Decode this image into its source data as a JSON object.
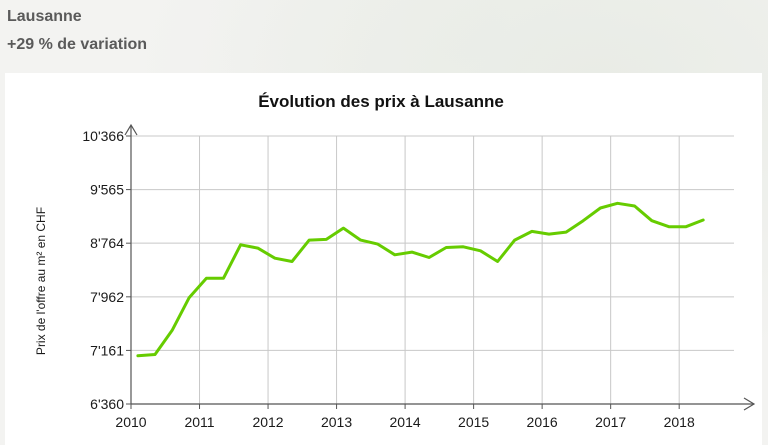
{
  "header": {
    "city": "Lausanne",
    "variation": "+29 % de variation"
  },
  "colors": {
    "line": "#66cc00",
    "grid": "#c8c8c8",
    "axis": "#555555"
  },
  "chart_data": {
    "type": "line",
    "title": "Évolution des prix à Lausanne",
    "ylabel": "Prix de l'offre au m² en CHF",
    "xlabel": "",
    "ylim": [
      6360,
      10366
    ],
    "xlim": [
      2010,
      2018.8
    ],
    "x_ticks": [
      "2010",
      "2011",
      "2012",
      "2013",
      "2014",
      "2015",
      "2016",
      "2017",
      "2018"
    ],
    "y_ticks": [
      "10'366",
      "9'565",
      "8'764",
      "7'962",
      "7'161",
      "6'360"
    ],
    "y_tick_values": [
      10366,
      9565,
      8764,
      7962,
      7161,
      6360
    ],
    "grid": true,
    "series": [
      {
        "x": [
          2010.1,
          2010.35,
          2010.6,
          2010.85,
          2011.1,
          2011.35,
          2011.6,
          2011.85,
          2012.1,
          2012.35,
          2012.6,
          2012.85,
          2013.1,
          2013.35,
          2013.6,
          2013.85,
          2014.1,
          2014.35,
          2014.6,
          2014.85,
          2015.1,
          2015.35,
          2015.6,
          2015.85,
          2016.1,
          2016.35,
          2016.6,
          2016.85,
          2017.1,
          2017.35,
          2017.6,
          2017.85,
          2018.1,
          2018.35
        ],
        "values": [
          7080,
          7100,
          7460,
          7950,
          8240,
          8240,
          8740,
          8690,
          8540,
          8490,
          8810,
          8820,
          8990,
          8810,
          8750,
          8590,
          8630,
          8550,
          8700,
          8710,
          8650,
          8490,
          8810,
          8940,
          8900,
          8930,
          9100,
          9290,
          9360,
          9320,
          9100,
          9010,
          9010,
          9110
        ]
      }
    ]
  }
}
